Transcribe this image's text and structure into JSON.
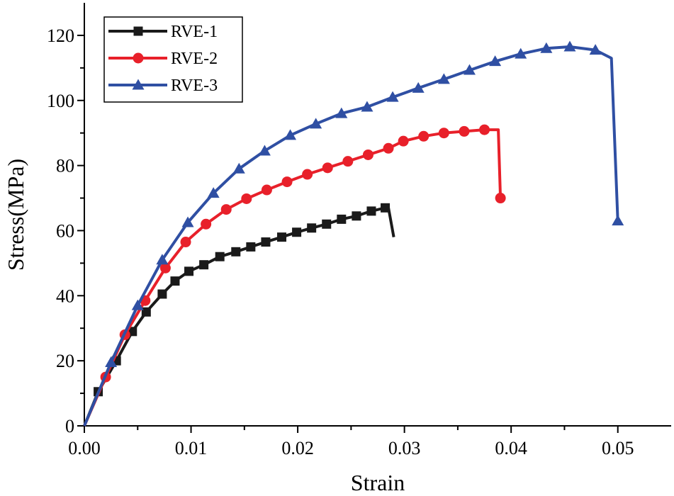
{
  "chart_data": {
    "type": "line",
    "title": "",
    "xlabel": "Strain",
    "ylabel": "Stress(MPa)",
    "xlim": [
      0.0,
      0.055
    ],
    "ylim": [
      0,
      130
    ],
    "xticks": [
      0.0,
      0.01,
      0.02,
      0.03,
      0.04,
      0.05
    ],
    "xtick_labels": [
      "0.00",
      "0.01",
      "0.02",
      "0.03",
      "0.04",
      "0.05"
    ],
    "yticks": [
      0,
      20,
      40,
      60,
      80,
      100,
      120
    ],
    "ytick_labels": [
      "0",
      "20",
      "40",
      "60",
      "80",
      "100",
      "120"
    ],
    "legend_position": "top-left",
    "series": [
      {
        "name": "RVE-1",
        "color": "#1a1a1a",
        "marker": "square",
        "x": [
          0.0,
          0.0013,
          0.003,
          0.0045,
          0.0058,
          0.0073,
          0.0085,
          0.0098,
          0.0112,
          0.0127,
          0.0142,
          0.0156,
          0.017,
          0.0185,
          0.0199,
          0.0213,
          0.0227,
          0.0241,
          0.0255,
          0.0269,
          0.0282,
          0.0285,
          0.029
        ],
        "y": [
          0,
          10.5,
          20,
          29,
          35,
          40.5,
          44.5,
          47.5,
          49.5,
          52,
          53.5,
          55,
          56.5,
          58,
          59.5,
          60.8,
          62,
          63.5,
          64.5,
          66,
          67,
          67,
          58
        ]
      },
      {
        "name": "RVE-2",
        "color": "#e8202a",
        "marker": "circle",
        "x": [
          0.0,
          0.002,
          0.0038,
          0.0057,
          0.0076,
          0.0095,
          0.0114,
          0.0133,
          0.0152,
          0.0171,
          0.019,
          0.0209,
          0.0228,
          0.0247,
          0.0266,
          0.0285,
          0.0299,
          0.0318,
          0.0337,
          0.0356,
          0.0375,
          0.0388,
          0.039
        ],
        "y": [
          0,
          15,
          28,
          38.5,
          48.5,
          56.5,
          62,
          66.5,
          69.8,
          72.5,
          75,
          77.3,
          79.3,
          81.3,
          83.3,
          85.3,
          87.5,
          89,
          90,
          90.5,
          91,
          91,
          70
        ]
      },
      {
        "name": "RVE-3",
        "color": "#2f4fa3",
        "marker": "triangle",
        "x": [
          0.0,
          0.0025,
          0.005,
          0.0073,
          0.0097,
          0.0121,
          0.0145,
          0.0169,
          0.0193,
          0.0217,
          0.0241,
          0.0265,
          0.0289,
          0.0313,
          0.0337,
          0.0361,
          0.0385,
          0.0409,
          0.0433,
          0.0455,
          0.0479,
          0.0494,
          0.05
        ],
        "y": [
          0,
          19.5,
          37,
          51,
          62.5,
          71.5,
          79,
          84.5,
          89.3,
          92.8,
          96,
          98,
          101,
          103.8,
          106.5,
          109.3,
          112,
          114.3,
          116,
          116.5,
          115.5,
          113,
          63
        ]
      }
    ]
  }
}
